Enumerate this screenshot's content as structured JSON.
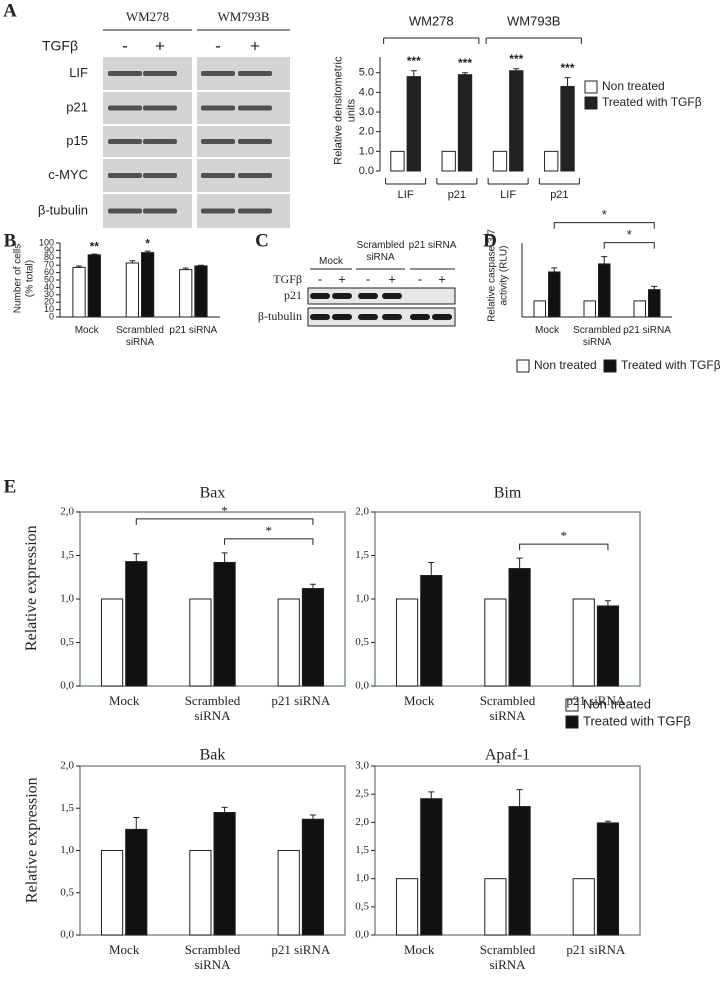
{
  "panel_labels": [
    "A",
    "B",
    "C",
    "D",
    "E"
  ],
  "blots": [
    {
      "groups": [
        "WM278",
        "WM793B"
      ],
      "treatment": "TGFβ",
      "signs": [
        "-",
        "+",
        "-",
        "+"
      ],
      "rows": [
        "LIF",
        "p21",
        "p15",
        "c-MYC",
        "β-tubulin"
      ]
    },
    {
      "groups": [
        "Mock",
        "Scrambled siRNA",
        "p21 siRNA"
      ],
      "treatment": "TGFβ",
      "signs": [
        "-",
        "+",
        "-",
        "+",
        "-",
        "+"
      ],
      "rows": [
        "p21",
        "β-tubulin"
      ]
    }
  ],
  "chart_data": [
    {
      "type": "bar",
      "groups": [
        "WM278",
        "WM793B"
      ],
      "categories": [
        "LIF",
        "p21",
        "LIF",
        "p21"
      ],
      "series": [
        {
          "name": "Non treated",
          "color": "#ffffff",
          "values": [
            1,
            1,
            1,
            1
          ]
        },
        {
          "name": "Treated with TGFβ",
          "color": "#222222",
          "values": [
            4.8,
            4.9,
            5.1,
            4.3
          ],
          "errors": [
            0.3,
            0.1,
            0.1,
            0.45
          ]
        }
      ],
      "ylabel": "Relative densitometric units",
      "ylim": [
        0,
        5.8
      ],
      "yticks": [
        {
          "value": 0,
          "label": "0.0"
        },
        {
          "value": 1,
          "label": "1.0"
        },
        {
          "value": 2,
          "label": "2.0"
        },
        {
          "value": 3,
          "label": "3.0"
        },
        {
          "value": 4,
          "label": "4.0"
        },
        {
          "value": 5,
          "label": "5.0"
        }
      ],
      "annotations": [
        "***",
        "***",
        "***",
        "***"
      ],
      "legend": true
    },
    {
      "type": "bar",
      "categories": [
        "Mock",
        "Scrambled siRNA",
        "p21 siRNA"
      ],
      "series": [
        {
          "color": "#ffffff",
          "values": [
            67,
            73,
            64
          ],
          "errors": [
            2,
            3,
            2
          ]
        },
        {
          "color": "#111111",
          "values": [
            84,
            87,
            69
          ],
          "errors": [
            1,
            2,
            1
          ]
        }
      ],
      "ylabel": "Number of cells (% total)",
      "ylim": [
        0,
        100
      ],
      "yticks": [
        0,
        10,
        20,
        30,
        40,
        50,
        60,
        70,
        80,
        90,
        100
      ],
      "annotations": [
        "**",
        "*"
      ]
    },
    {
      "type": "bar",
      "categories": [
        "Mock",
        "Scrambled siRNA",
        "p21 siRNA"
      ],
      "series": [
        {
          "name": "Non treated",
          "color": "#ffffff",
          "values": [
            1,
            1,
            1
          ]
        },
        {
          "name": "Treated with TGFβ",
          "color": "#111111",
          "values": [
            2.8,
            3.3,
            1.7
          ],
          "errors": [
            0.25,
            0.45,
            0.2
          ]
        }
      ],
      "ylabel": "Relative caspase 3/7 activity (RLU)",
      "ylim": [
        0,
        4.6
      ],
      "significance": [
        "*",
        "*"
      ],
      "legend": true
    },
    {
      "type": "bar",
      "title": "Bax",
      "categories": [
        "Mock",
        "Scrambled siRNA",
        "p21 siRNA"
      ],
      "series": [
        {
          "color": "#ffffff",
          "values": [
            1,
            1,
            1
          ]
        },
        {
          "color": "#111111",
          "values": [
            1.43,
            1.42,
            1.12
          ],
          "errors": [
            0.09,
            0.11,
            0.05
          ]
        }
      ],
      "ylabel": "Relative expression",
      "ylim": [
        0,
        2
      ],
      "yticks": [
        {
          "value": 0,
          "label": "0,0"
        },
        {
          "value": 0.5,
          "label": "0,5"
        },
        {
          "value": 1,
          "label": "1,0"
        },
        {
          "value": 1.5,
          "label": "1,5"
        },
        {
          "value": 2,
          "label": "2,0"
        }
      ],
      "significance": [
        "*",
        "*"
      ]
    },
    {
      "type": "bar",
      "title": "Bim",
      "categories": [
        "Mock",
        "Scrambled siRNA",
        "p21 siRNA"
      ],
      "series": [
        {
          "name": "Non treated",
          "color": "#ffffff",
          "values": [
            1,
            1,
            1
          ]
        },
        {
          "name": "Treated with TGFβ",
          "color": "#111111",
          "values": [
            1.27,
            1.35,
            0.92
          ],
          "errors": [
            0.15,
            0.12,
            0.06
          ]
        }
      ],
      "ylim": [
        0,
        2
      ],
      "yticks": [
        {
          "value": 0,
          "label": "0,0"
        },
        {
          "value": 0.5,
          "label": "0,5"
        },
        {
          "value": 1,
          "label": "1,0"
        },
        {
          "value": 1.5,
          "label": "1,5"
        },
        {
          "value": 2,
          "label": "2,0"
        }
      ],
      "significance": [
        "*"
      ],
      "legend": true
    },
    {
      "type": "bar",
      "title": "Bak",
      "categories": [
        "Mock",
        "Scrambled siRNA",
        "p21 siRNA"
      ],
      "series": [
        {
          "color": "#ffffff",
          "values": [
            1,
            1,
            1
          ]
        },
        {
          "color": "#111111",
          "values": [
            1.25,
            1.45,
            1.37
          ],
          "errors": [
            0.14,
            0.06,
            0.05
          ]
        }
      ],
      "ylabel": "Relative expression",
      "ylim": [
        0,
        2
      ],
      "yticks": [
        {
          "value": 0,
          "label": "0,0"
        },
        {
          "value": 0.5,
          "label": "0,5"
        },
        {
          "value": 1,
          "label": "1,0"
        },
        {
          "value": 1.5,
          "label": "1,5"
        },
        {
          "value": 2,
          "label": "2,0"
        }
      ]
    },
    {
      "type": "bar",
      "title": "Apaf-1",
      "categories": [
        "Mock",
        "Scrambled siRNA",
        "p21 siRNA"
      ],
      "series": [
        {
          "color": "#ffffff",
          "values": [
            1,
            1,
            1
          ]
        },
        {
          "color": "#111111",
          "values": [
            2.42,
            2.28,
            1.99
          ],
          "errors": [
            0.12,
            0.3,
            0.03
          ]
        }
      ],
      "ylim": [
        0,
        3
      ],
      "yticks": [
        {
          "value": 0,
          "label": "0,0"
        },
        {
          "value": 0.5,
          "label": "0,5"
        },
        {
          "value": 1,
          "label": "1,0"
        },
        {
          "value": 1.5,
          "label": "1,5"
        },
        {
          "value": 2,
          "label": "2,0"
        },
        {
          "value": 2.5,
          "label": "2,5"
        },
        {
          "value": 3,
          "label": "3,0"
        }
      ]
    }
  ]
}
